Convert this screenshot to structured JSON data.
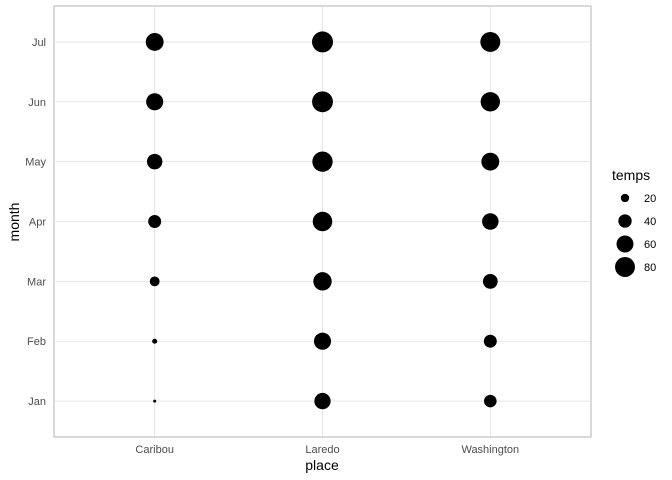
{
  "chart_data": {
    "type": "scatter",
    "title": "",
    "xlabel": "place",
    "ylabel": "month",
    "x_categories": [
      "Caribou",
      "Laredo",
      "Washington"
    ],
    "y_categories": [
      "Jan",
      "Feb",
      "Mar",
      "Apr",
      "May",
      "Jun",
      "Jul"
    ],
    "size_variable": "temps",
    "grid": true,
    "legend_position": "right",
    "point_color": "#000000",
    "points": [
      {
        "place": "Caribou",
        "month": "Jan",
        "temps": 9
      },
      {
        "place": "Caribou",
        "month": "Feb",
        "temps": 12
      },
      {
        "place": "Caribou",
        "month": "Mar",
        "temps": 25
      },
      {
        "place": "Caribou",
        "month": "Apr",
        "temps": 38
      },
      {
        "place": "Caribou",
        "month": "May",
        "temps": 51
      },
      {
        "place": "Caribou",
        "month": "Jun",
        "temps": 61
      },
      {
        "place": "Caribou",
        "month": "Jul",
        "temps": 66
      },
      {
        "place": "Laredo",
        "month": "Jan",
        "temps": 56
      },
      {
        "place": "Laredo",
        "month": "Feb",
        "temps": 61
      },
      {
        "place": "Laredo",
        "month": "Mar",
        "temps": 69
      },
      {
        "place": "Laredo",
        "month": "Apr",
        "temps": 77
      },
      {
        "place": "Laredo",
        "month": "May",
        "temps": 83
      },
      {
        "place": "Laredo",
        "month": "Jun",
        "temps": 87
      },
      {
        "place": "Laredo",
        "month": "Jul",
        "temps": 88
      },
      {
        "place": "Washington",
        "month": "Jan",
        "temps": 36
      },
      {
        "place": "Washington",
        "month": "Feb",
        "temps": 38
      },
      {
        "place": "Washington",
        "month": "Mar",
        "temps": 47
      },
      {
        "place": "Washington",
        "month": "Apr",
        "temps": 57
      },
      {
        "place": "Washington",
        "month": "May",
        "temps": 66
      },
      {
        "place": "Washington",
        "month": "Jun",
        "temps": 76
      },
      {
        "place": "Washington",
        "month": "Jul",
        "temps": 80
      }
    ],
    "legend": {
      "title": "temps",
      "breaks": [
        20,
        40,
        60,
        80
      ]
    }
  }
}
